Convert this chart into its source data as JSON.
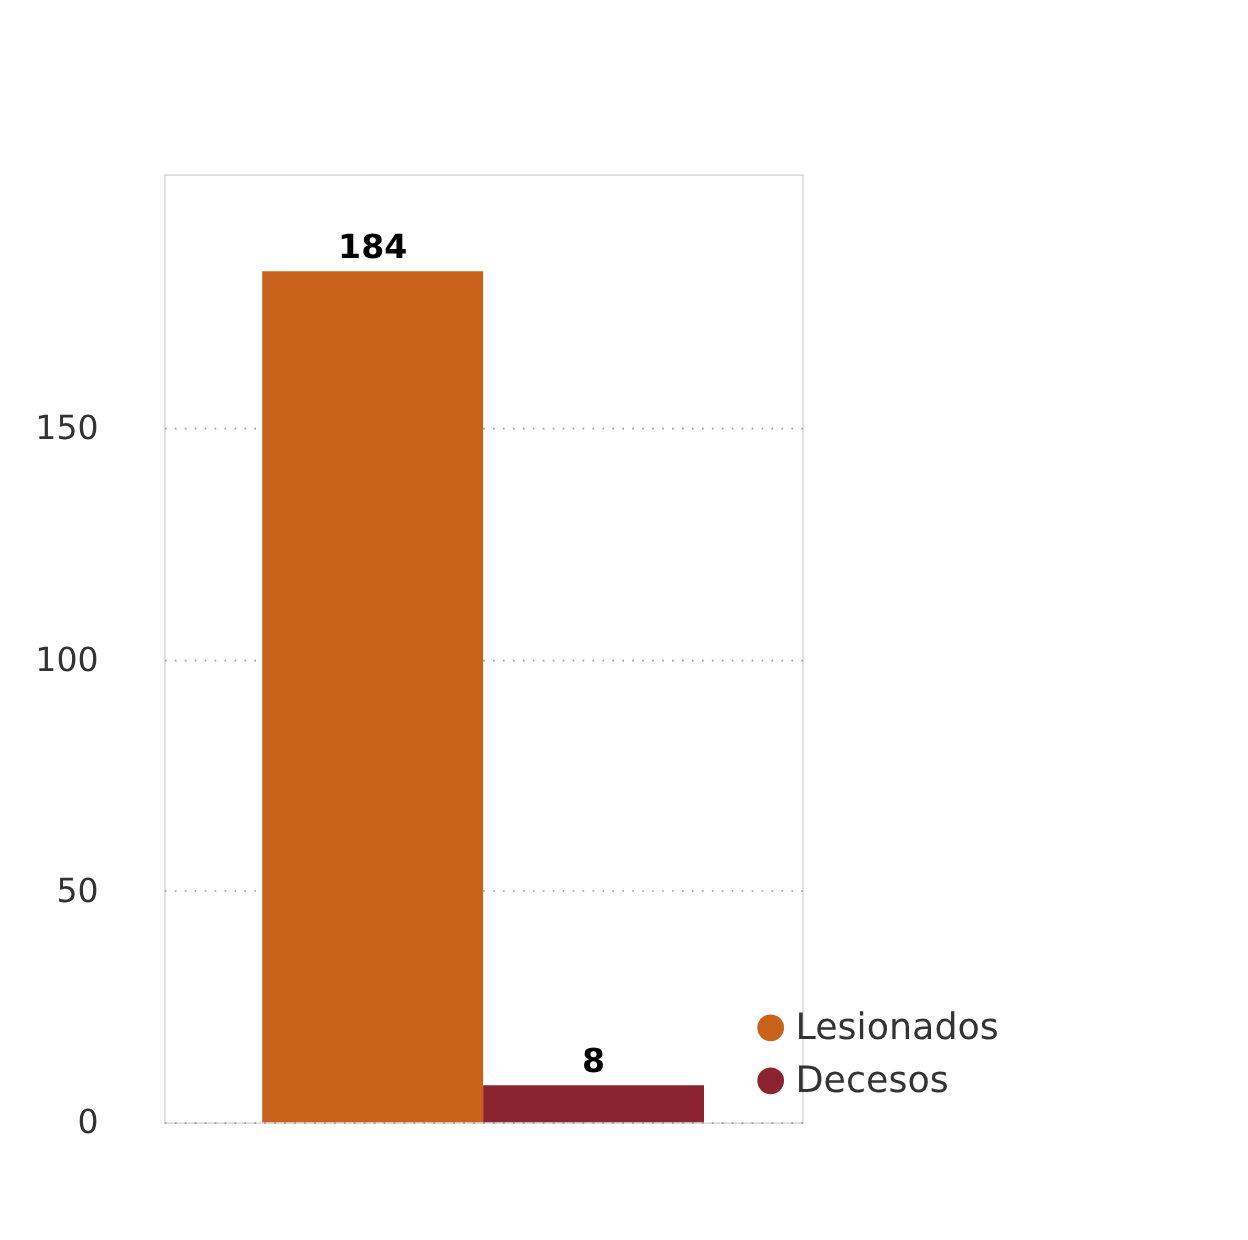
{
  "chart_data": {
    "type": "bar",
    "categories": [
      null
    ],
    "series": [
      {
        "name": "Lesionados",
        "color": "#c8621a",
        "values": [
          184
        ]
      },
      {
        "name": "Decesos",
        "color": "#8b2430",
        "values": [
          8
        ]
      }
    ],
    "ylim": [
      0,
      205
    ],
    "yticks": [
      0,
      50,
      100,
      150
    ],
    "grid": "y",
    "legend": "bottom right",
    "data_labels": true,
    "tick_labels": "y"
  }
}
